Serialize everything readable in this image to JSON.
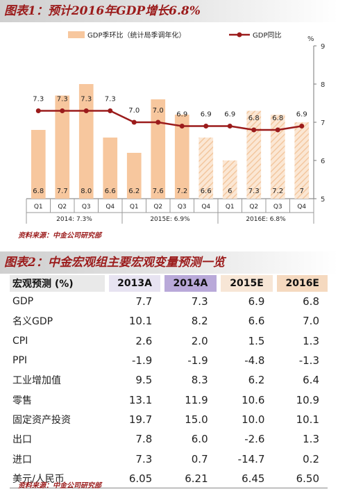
{
  "figure1": {
    "title": "图表1：预计2016年GDP增长6.8%",
    "source": "资料来源：中金公司研究部"
  },
  "figure2": {
    "title": "图表2：中金宏观组主要宏观变量预测一览",
    "source": "资料来源：中金公司研究部"
  },
  "colors": {
    "bar": "#f7c79e",
    "bar_hatch": "#f3cfae",
    "line": "#9b1b1b",
    "title_text": "#9b1b1b"
  },
  "chart_data": {
    "type": "bar+line",
    "categories": [
      "Q1",
      "Q2",
      "Q3",
      "Q4",
      "Q1",
      "Q2",
      "Q3",
      "Q4",
      "Q1",
      "Q2",
      "Q3",
      "Q4"
    ],
    "groups": [
      {
        "label": "2014: 7.3%",
        "start": 0,
        "end": 3
      },
      {
        "label": "2015E: 6.9%",
        "start": 4,
        "end": 7
      },
      {
        "label": "2016E: 6.8%",
        "start": 8,
        "end": 11
      }
    ],
    "series": [
      {
        "name": "GDP季环比（统计局季调年化）",
        "type": "bar",
        "axis": "left",
        "values": [
          6.8,
          7.7,
          8.0,
          6.6,
          6.2,
          7.6,
          7.2,
          6.6,
          6.0,
          7.3,
          7.2,
          7.0
        ],
        "labels": [
          "6.8",
          "7.7",
          "8.0",
          "6.6",
          "6.2",
          "7.6",
          "7.2",
          "6.6",
          "6",
          "7.3",
          "7.2",
          "7"
        ],
        "forecast_from_index": 7
      },
      {
        "name": "GDP同比",
        "type": "line",
        "axis": "right",
        "values": [
          7.3,
          7.3,
          7.3,
          7.3,
          7.0,
          7.0,
          6.9,
          6.9,
          6.9,
          6.8,
          6.8,
          6.9
        ],
        "labels": [
          "7.3",
          "7.3",
          "7.3",
          "7.3",
          "7.0",
          "7.0",
          "6.9",
          "6.9",
          "6.9",
          "6.8",
          "6.8",
          "6.9"
        ]
      }
    ],
    "yaxis_right": {
      "unit": "%",
      "ticks": [
        "5",
        "6",
        "7",
        "8",
        "9"
      ],
      "ylim": [
        5,
        9
      ]
    },
    "legend_position": "top"
  },
  "table": {
    "headers": [
      "宏观预测 (%)",
      "2013A",
      "2014A",
      "2015E",
      "2016E"
    ],
    "rows": [
      {
        "label": "GDP",
        "values": [
          "7.7",
          "7.3",
          "6.9",
          "6.8"
        ]
      },
      {
        "label": "名义GDP",
        "values": [
          "10.1",
          "8.2",
          "6.6",
          "7.0"
        ]
      },
      {
        "label": "CPI",
        "values": [
          "2.6",
          "2.0",
          "1.5",
          "1.3"
        ]
      },
      {
        "label": "PPI",
        "values": [
          "-1.9",
          "-1.9",
          "-4.8",
          "-1.3"
        ]
      },
      {
        "label": "工业增加值",
        "values": [
          "9.5",
          "8.3",
          "6.2",
          "6.4"
        ]
      },
      {
        "label": "零售",
        "values": [
          "13.1",
          "11.9",
          "10.6",
          "10.9"
        ]
      },
      {
        "label": "固定资产投资",
        "values": [
          "19.7",
          "15.0",
          "10.0",
          "10.1"
        ]
      },
      {
        "label": "出口",
        "values": [
          "7.8",
          "6.0",
          "-2.6",
          "1.3"
        ]
      },
      {
        "label": "进口",
        "values": [
          "7.3",
          "0.7",
          "-14.7",
          "0.2"
        ]
      },
      {
        "label": "美元/人民币",
        "values": [
          "6.05",
          "6.21",
          "6.45",
          "6.50"
        ]
      }
    ]
  }
}
